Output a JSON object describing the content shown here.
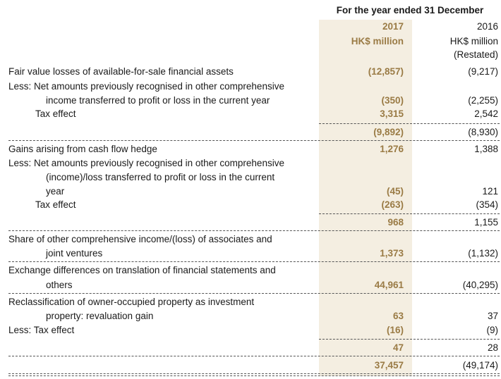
{
  "header": {
    "title": "For the year ended 31 December",
    "col2017": {
      "year": "2017",
      "unit": "HK$ million"
    },
    "col2016": {
      "year": "2016",
      "unit": "HK$ million",
      "note": "(Restated)"
    }
  },
  "rows": [
    {
      "label": "Fair value losses of available-for-sale financial assets",
      "v2017": "(12,857)",
      "v2016": "(9,217)"
    },
    {
      "label": "Less: Net amounts previously recognised in other comprehensive",
      "v2017": "",
      "v2016": ""
    },
    {
      "label": "income transferred to profit or loss in the current year",
      "v2017": "(350)",
      "v2016": "(2,255)"
    },
    {
      "label": "Tax effect",
      "v2017": "3,315",
      "v2016": "2,542"
    },
    {
      "label": "",
      "v2017": "(9,892)",
      "v2016": "(8,930)"
    },
    {
      "label": "Gains arising from cash flow hedge",
      "v2017": "1,276",
      "v2016": "1,388"
    },
    {
      "label": "Less: Net amounts previously recognised in other comprehensive",
      "v2017": "",
      "v2016": ""
    },
    {
      "label": "(income)/loss transferred to profit or loss in the current",
      "v2017": "",
      "v2016": ""
    },
    {
      "label": "year",
      "v2017": "(45)",
      "v2016": "121"
    },
    {
      "label": "Tax effect",
      "v2017": "(263)",
      "v2016": "(354)"
    },
    {
      "label": "",
      "v2017": "968",
      "v2016": "1,155"
    },
    {
      "label": "Share of other comprehensive income/(loss) of associates and",
      "v2017": "",
      "v2016": ""
    },
    {
      "label": "joint ventures",
      "v2017": "1,373",
      "v2016": "(1,132)"
    },
    {
      "label": "Exchange differences on translation of financial statements and",
      "v2017": "",
      "v2016": ""
    },
    {
      "label": "others",
      "v2017": "44,961",
      "v2016": "(40,295)"
    },
    {
      "label": "Reclassification of owner-occupied property as investment",
      "v2017": "",
      "v2016": ""
    },
    {
      "label": "property: revaluation gain",
      "v2017": "63",
      "v2016": "37"
    },
    {
      "label": "Less: Tax effect",
      "v2017": "(16)",
      "v2016": "(9)"
    },
    {
      "label": "",
      "v2017": "47",
      "v2016": "28"
    },
    {
      "label": "",
      "v2017": "37,457",
      "v2016": "(49,174)"
    }
  ]
}
